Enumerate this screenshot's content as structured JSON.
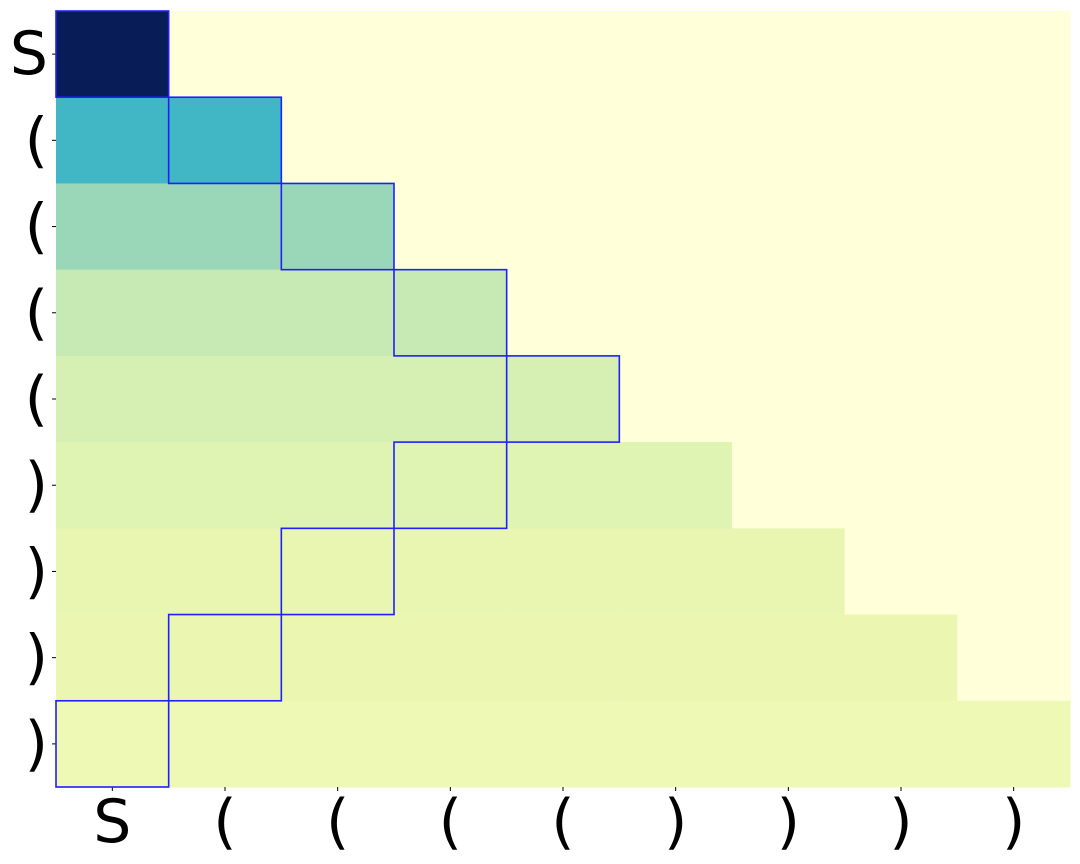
{
  "chart_data": {
    "type": "heatmap",
    "colormap": "YlGnBu",
    "x_tick_labels": [
      "S",
      "(",
      "(",
      "(",
      "(",
      ")",
      ")",
      ")",
      ")"
    ],
    "y_tick_labels": [
      "S",
      "(",
      "(",
      "(",
      "(",
      ")",
      ")",
      ")",
      ")"
    ],
    "matrix": [
      [
        1.0,
        0.0,
        0.0,
        0.0,
        0.0,
        0.0,
        0.0,
        0.0,
        0.0
      ],
      [
        0.5,
        0.5,
        0.0,
        0.0,
        0.0,
        0.0,
        0.0,
        0.0,
        0.0
      ],
      [
        0.33,
        0.33,
        0.33,
        0.0,
        0.0,
        0.0,
        0.0,
        0.0,
        0.0
      ],
      [
        0.25,
        0.25,
        0.25,
        0.25,
        0.0,
        0.0,
        0.0,
        0.0,
        0.0
      ],
      [
        0.2,
        0.2,
        0.2,
        0.2,
        0.2,
        0.0,
        0.0,
        0.0,
        0.0
      ],
      [
        0.17,
        0.17,
        0.17,
        0.17,
        0.17,
        0.17,
        0.0,
        0.0,
        0.0
      ],
      [
        0.14,
        0.14,
        0.14,
        0.14,
        0.14,
        0.14,
        0.14,
        0.0,
        0.0
      ],
      [
        0.13,
        0.13,
        0.13,
        0.13,
        0.13,
        0.13,
        0.13,
        0.13,
        0.0
      ],
      [
        0.11,
        0.11,
        0.11,
        0.11,
        0.11,
        0.11,
        0.11,
        0.11,
        0.11
      ]
    ],
    "highlighted_cells": [
      [
        0,
        0
      ],
      [
        1,
        1
      ],
      [
        2,
        2
      ],
      [
        3,
        3
      ],
      [
        4,
        4
      ],
      [
        5,
        3
      ],
      [
        6,
        2
      ],
      [
        7,
        1
      ],
      [
        8,
        0
      ]
    ],
    "highlight_color": "#1f1fff",
    "colorbar": false,
    "grid": false
  }
}
